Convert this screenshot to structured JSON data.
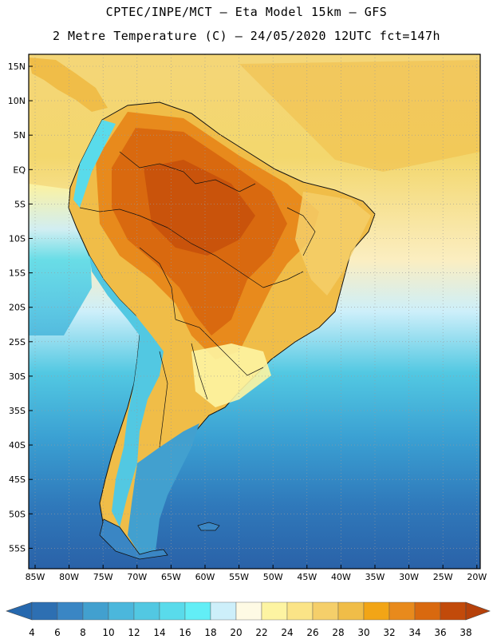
{
  "header": {
    "line1": "CPTEC/INPE/MCT –  Eta Model 15km – GFS",
    "line2": "2 Metre Temperature (C) – 24/05/2020 12UTC fct=147h"
  },
  "map": {
    "region": "South America",
    "lat_labels": [
      "15N",
      "10N",
      "5N",
      "EQ",
      "5S",
      "10S",
      "15S",
      "20S",
      "25S",
      "30S",
      "35S",
      "40S",
      "45S",
      "50S",
      "55S"
    ],
    "lon_labels": [
      "85W",
      "80W",
      "75W",
      "70W",
      "65W",
      "60W",
      "55W",
      "50W",
      "45W",
      "40W",
      "35W",
      "30W",
      "25W",
      "20W"
    ]
  },
  "colorbar": {
    "ticks": [
      "4",
      "6",
      "8",
      "10",
      "12",
      "14",
      "16",
      "18",
      "20",
      "22",
      "24",
      "26",
      "28",
      "30",
      "32",
      "34",
      "36",
      "38"
    ],
    "colors": [
      "#2d6fb2",
      "#3a86c4",
      "#42a0cf",
      "#4bb7dc",
      "#52c8e2",
      "#59dbeb",
      "#62eef6",
      "#cdeffa",
      "#fefae4",
      "#fdf4a2",
      "#fbe487",
      "#f5cf6a",
      "#f0bd48",
      "#f2a516",
      "#e88a1c",
      "#d9690f",
      "#c24a0a"
    ],
    "low_color": "#2668ae",
    "high_color": "#b6410a"
  }
}
